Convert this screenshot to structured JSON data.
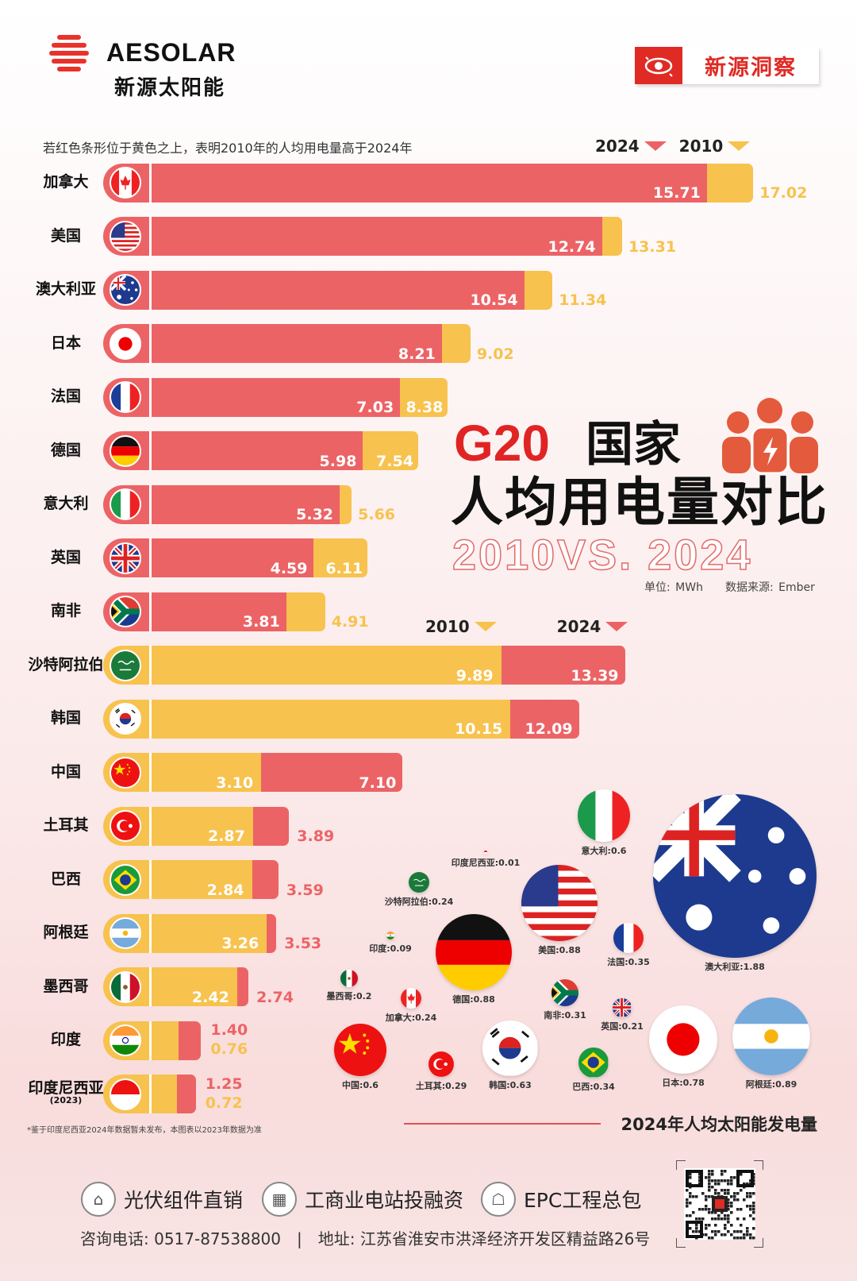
{
  "header": {
    "brand": "AESOLAR",
    "brand_cn": "新源太阳能",
    "badge": "新源洞察"
  },
  "note": "若红色条形位于黄色之上，表明2010年的人均用电量高于2024年",
  "legend_top": {
    "first": "2024",
    "second": "2010"
  },
  "legend_mid": {
    "first": "2010",
    "second": "2024"
  },
  "title": {
    "line1_red": "G20",
    "line1_black": "国家",
    "line2": "人均用电量对比",
    "line3": "2010VS. 2024",
    "unit": "单位: MWh",
    "source": "数据来源: Ember"
  },
  "colors": {
    "red": "#ec6366",
    "yellow": "#f7c24e",
    "title_red": "#e02424"
  },
  "chart_data": {
    "type": "bar",
    "title": "G20国家人均用电量对比 2010VS. 2024",
    "unit": "MWh",
    "categories": [
      "加拿大",
      "美国",
      "澳大利亚",
      "日本",
      "法国",
      "德国",
      "意大利",
      "英国",
      "南非",
      "沙特阿拉伯",
      "韩国",
      "中国",
      "土耳其",
      "巴西",
      "阿根廷",
      "墨西哥",
      "印度",
      "印度尼西亚"
    ],
    "category_notes": [
      "",
      "",
      "",
      "",
      "",
      "",
      "",
      "",
      "",
      "",
      "",
      "",
      "",
      "",
      "",
      "",
      "",
      "(2023)"
    ],
    "flags": [
      "ca",
      "us",
      "au",
      "jp",
      "fr",
      "de",
      "it",
      "gb",
      "za",
      "sa",
      "kr",
      "cn",
      "tr",
      "br",
      "ar",
      "mx",
      "in",
      "id"
    ],
    "series": [
      {
        "name": "2010",
        "color": "#f7c24e",
        "values": [
          17.02,
          13.31,
          11.34,
          9.02,
          8.38,
          7.54,
          5.66,
          6.11,
          4.91,
          9.89,
          10.15,
          3.1,
          2.87,
          2.84,
          3.26,
          2.42,
          0.76,
          0.72
        ],
        "labels": [
          "17.02",
          "13.31",
          "11.34",
          "9.02",
          "8.38",
          "7.54",
          "5.66",
          "6.11",
          "4.91",
          "9.89",
          "10.15",
          "3.10",
          "2.87",
          "2.84",
          "3.26",
          "2.42",
          "0.76",
          "0.72"
        ]
      },
      {
        "name": "2024",
        "color": "#ec6366",
        "values": [
          15.71,
          12.74,
          10.54,
          8.21,
          7.03,
          5.98,
          5.32,
          4.59,
          3.81,
          13.39,
          12.09,
          7.1,
          3.89,
          3.59,
          3.53,
          2.74,
          1.4,
          1.25
        ],
        "labels": [
          "15.71",
          "12.74",
          "10.54",
          "8.21",
          "7.03",
          "5.98",
          "5.32",
          "4.59",
          "3.81",
          "13.39",
          "12.09",
          "7.10",
          "3.89",
          "3.59",
          "3.53",
          "2.74",
          "1.40",
          "1.25"
        ]
      }
    ],
    "xlim": [
      0,
      18
    ],
    "footnote": "*鉴于印度尼西亚2024年数据暂未发布，本图表以2023年数据为准"
  },
  "solar": {
    "title": "2024年人均太阳能发电量",
    "items": [
      {
        "flag": "it",
        "value": 0.6,
        "label": "意大利:0.6"
      },
      {
        "flag": "id",
        "value": 0.01,
        "label": "印度尼西亚:0.01"
      },
      {
        "flag": "sa",
        "value": 0.24,
        "label": "沙特阿拉伯:0.24"
      },
      {
        "flag": "us",
        "value": 0.88,
        "label": "美国:0.88"
      },
      {
        "flag": "au",
        "value": 1.88,
        "label": "澳大利亚:1.88"
      },
      {
        "flag": "in",
        "value": 0.09,
        "label": "印度:0.09"
      },
      {
        "flag": "de",
        "value": 0.88,
        "label": "德国:0.88"
      },
      {
        "flag": "fr",
        "value": 0.35,
        "label": "法国:0.35"
      },
      {
        "flag": "mx",
        "value": 0.2,
        "label": "墨西哥:0.2"
      },
      {
        "flag": "ca",
        "value": 0.24,
        "label": "加拿大:0.24"
      },
      {
        "flag": "za",
        "value": 0.31,
        "label": "南非:0.31"
      },
      {
        "flag": "gb",
        "value": 0.21,
        "label": "英国:0.21"
      },
      {
        "flag": "cn",
        "value": 0.6,
        "label": "中国:0.6"
      },
      {
        "flag": "tr",
        "value": 0.29,
        "label": "土耳其:0.29"
      },
      {
        "flag": "kr",
        "value": 0.63,
        "label": "韩国:0.63"
      },
      {
        "flag": "br",
        "value": 0.34,
        "label": "巴西:0.34"
      },
      {
        "flag": "jp",
        "value": 0.78,
        "label": "日本:0.78"
      },
      {
        "flag": "ar",
        "value": 0.89,
        "label": "阿根廷:0.89"
      }
    ]
  },
  "footer": {
    "services": [
      {
        "icon": "solar-panel-icon",
        "label": "光伏组件直销"
      },
      {
        "icon": "factory-icon",
        "label": "工商业电站投融资"
      },
      {
        "icon": "engineer-icon",
        "label": "EPC工程总包"
      }
    ],
    "contact": "咨询电话: 0517-87538800　|　地址: 江苏省淮安市洪泽经济开发区精益路26号"
  }
}
